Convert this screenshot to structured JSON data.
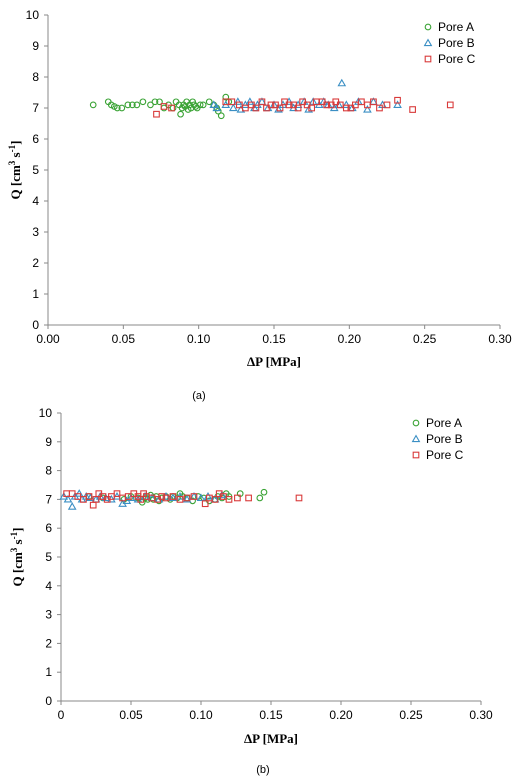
{
  "chart_data": [
    {
      "type": "scatter",
      "caption": "(a)",
      "xlabel": "ΔP [MPa]",
      "ylabel_main": "Q [cm",
      "ylabel_sup1": "3",
      "ylabel_mid": " s",
      "ylabel_sup2": "-1",
      "ylabel_end": "]",
      "xlim": [
        0,
        0.3
      ],
      "ylim": [
        0,
        10
      ],
      "x_ticks": [
        "0.00",
        "0.05",
        "0.10",
        "0.15",
        "0.20",
        "0.25",
        "0.30"
      ],
      "y_ticks": [
        "0",
        "1",
        "2",
        "3",
        "4",
        "5",
        "6",
        "7",
        "8",
        "9",
        "10"
      ],
      "grid": false,
      "legend_position": "top-right",
      "series": [
        {
          "name": "Pore A",
          "marker": "circle",
          "color": "#3aa335",
          "x": [
            0.03,
            0.04,
            0.042,
            0.044,
            0.046,
            0.049,
            0.053,
            0.056,
            0.059,
            0.063,
            0.068,
            0.071,
            0.074,
            0.077,
            0.08,
            0.083,
            0.085,
            0.087,
            0.088,
            0.089,
            0.09,
            0.091,
            0.092,
            0.093,
            0.094,
            0.095,
            0.096,
            0.097,
            0.098,
            0.099,
            0.101,
            0.103,
            0.107,
            0.11,
            0.112,
            0.113,
            0.115,
            0.118,
            0.12
          ],
          "y": [
            7.1,
            7.2,
            7.1,
            7.05,
            7.0,
            7.0,
            7.1,
            7.1,
            7.1,
            7.2,
            7.1,
            7.2,
            7.2,
            7.0,
            7.1,
            7.0,
            7.2,
            7.1,
            6.8,
            7.0,
            7.1,
            7.05,
            7.2,
            6.95,
            7.1,
            7.0,
            7.2,
            7.1,
            7.05,
            7.0,
            7.1,
            7.1,
            7.2,
            7.1,
            7.0,
            6.9,
            6.75,
            7.35,
            7.2
          ]
        },
        {
          "name": "Pore B",
          "marker": "triangle",
          "color": "#3b8fc4",
          "x": [
            0.11,
            0.112,
            0.118,
            0.123,
            0.126,
            0.128,
            0.131,
            0.134,
            0.137,
            0.139,
            0.142,
            0.146,
            0.15,
            0.153,
            0.156,
            0.16,
            0.163,
            0.166,
            0.17,
            0.173,
            0.176,
            0.18,
            0.183,
            0.186,
            0.19,
            0.193,
            0.195,
            0.198,
            0.202,
            0.206,
            0.212,
            0.216,
            0.222,
            0.232
          ],
          "y": [
            7.1,
            7.0,
            7.1,
            7.0,
            7.2,
            6.95,
            7.1,
            7.2,
            7.0,
            7.1,
            7.2,
            7.0,
            7.1,
            6.95,
            7.1,
            7.2,
            7.0,
            7.1,
            7.2,
            6.95,
            7.2,
            7.1,
            7.2,
            7.1,
            7.0,
            7.1,
            7.8,
            7.1,
            7.0,
            7.2,
            6.95,
            7.2,
            7.1,
            7.1
          ]
        },
        {
          "name": "Pore C",
          "marker": "square",
          "color": "#d93a3a",
          "x": [
            0.072,
            0.077,
            0.082,
            0.118,
            0.122,
            0.127,
            0.131,
            0.135,
            0.138,
            0.142,
            0.145,
            0.148,
            0.151,
            0.154,
            0.157,
            0.16,
            0.163,
            0.166,
            0.169,
            0.172,
            0.175,
            0.178,
            0.182,
            0.185,
            0.188,
            0.191,
            0.194,
            0.198,
            0.201,
            0.204,
            0.208,
            0.212,
            0.216,
            0.22,
            0.225,
            0.232,
            0.242,
            0.267
          ],
          "y": [
            6.8,
            7.05,
            7.0,
            7.2,
            7.2,
            7.1,
            7.0,
            7.1,
            7.0,
            7.2,
            7.0,
            7.1,
            7.1,
            7.0,
            7.2,
            7.1,
            7.1,
            7.0,
            7.2,
            7.1,
            7.0,
            7.2,
            7.2,
            7.1,
            7.1,
            7.2,
            7.1,
            7.0,
            7.0,
            7.1,
            7.2,
            7.1,
            7.2,
            7.0,
            7.1,
            7.25,
            6.95,
            7.1
          ]
        }
      ]
    },
    {
      "type": "scatter",
      "caption": "(b)",
      "xlabel": "ΔP [MPa]",
      "ylabel_main": "Q [cm",
      "ylabel_sup1": "3",
      "ylabel_mid": " s",
      "ylabel_sup2": "-1",
      "ylabel_end": "]",
      "xlim": [
        0,
        0.3
      ],
      "ylim": [
        0,
        10
      ],
      "x_ticks": [
        "0",
        "0.05",
        "0.10",
        "0.15",
        "0.20",
        "0.25",
        "0.30"
      ],
      "y_ticks": [
        "0",
        "1",
        "2",
        "3",
        "4",
        "5",
        "6",
        "7",
        "8",
        "9",
        "10"
      ],
      "grid": false,
      "legend_position": "top-right",
      "series": [
        {
          "name": "Pore A",
          "marker": "circle",
          "color": "#3aa335",
          "x": [
            0.02,
            0.03,
            0.045,
            0.05,
            0.055,
            0.058,
            0.06,
            0.062,
            0.064,
            0.066,
            0.068,
            0.07,
            0.072,
            0.075,
            0.078,
            0.08,
            0.083,
            0.085,
            0.087,
            0.09,
            0.094,
            0.098,
            0.102,
            0.106,
            0.11,
            0.112,
            0.115,
            0.118,
            0.12,
            0.128,
            0.142,
            0.145
          ],
          "y": [
            7.1,
            7.05,
            7.0,
            7.1,
            7.05,
            6.9,
            7.05,
            7.0,
            7.15,
            7.0,
            7.1,
            6.95,
            7.05,
            7.1,
            7.0,
            7.1,
            7.05,
            7.2,
            7.1,
            7.05,
            6.95,
            7.1,
            7.05,
            6.95,
            7.0,
            7.1,
            7.05,
            7.2,
            7.1,
            7.2,
            7.05,
            7.25
          ]
        },
        {
          "name": "Pore B",
          "marker": "triangle",
          "color": "#3b8fc4",
          "x": [
            0.002,
            0.005,
            0.008,
            0.01,
            0.013,
            0.015,
            0.018,
            0.021,
            0.025,
            0.028,
            0.032,
            0.036,
            0.04,
            0.044,
            0.047,
            0.05,
            0.055,
            0.06,
            0.065,
            0.07,
            0.075,
            0.08,
            0.085,
            0.09,
            0.095,
            0.1,
            0.105,
            0.11,
            0.115
          ],
          "y": [
            7.1,
            7.0,
            6.75,
            7.1,
            7.2,
            7.0,
            7.1,
            7.05,
            7.0,
            7.1,
            7.05,
            7.0,
            7.1,
            6.85,
            6.95,
            7.05,
            7.0,
            7.1,
            7.05,
            7.0,
            7.1,
            7.05,
            7.1,
            7.0,
            7.1,
            7.05,
            7.1,
            7.0,
            7.15
          ]
        },
        {
          "name": "Pore C",
          "marker": "square",
          "color": "#d93a3a",
          "x": [
            0.004,
            0.008,
            0.012,
            0.016,
            0.02,
            0.023,
            0.025,
            0.027,
            0.03,
            0.033,
            0.036,
            0.04,
            0.044,
            0.048,
            0.052,
            0.055,
            0.057,
            0.059,
            0.061,
            0.065,
            0.069,
            0.072,
            0.075,
            0.08,
            0.085,
            0.09,
            0.095,
            0.103,
            0.106,
            0.11,
            0.113,
            0.116,
            0.12,
            0.126,
            0.134,
            0.17
          ],
          "y": [
            7.2,
            7.2,
            7.1,
            7.0,
            7.1,
            6.8,
            7.0,
            7.2,
            7.1,
            7.0,
            7.1,
            7.2,
            7.05,
            7.1,
            7.2,
            7.1,
            7.0,
            7.2,
            7.1,
            7.05,
            7.0,
            7.1,
            7.05,
            7.1,
            7.0,
            7.05,
            7.1,
            6.85,
            7.05,
            7.0,
            7.2,
            7.1,
            7.0,
            7.05,
            7.05,
            7.05
          ]
        }
      ]
    }
  ]
}
